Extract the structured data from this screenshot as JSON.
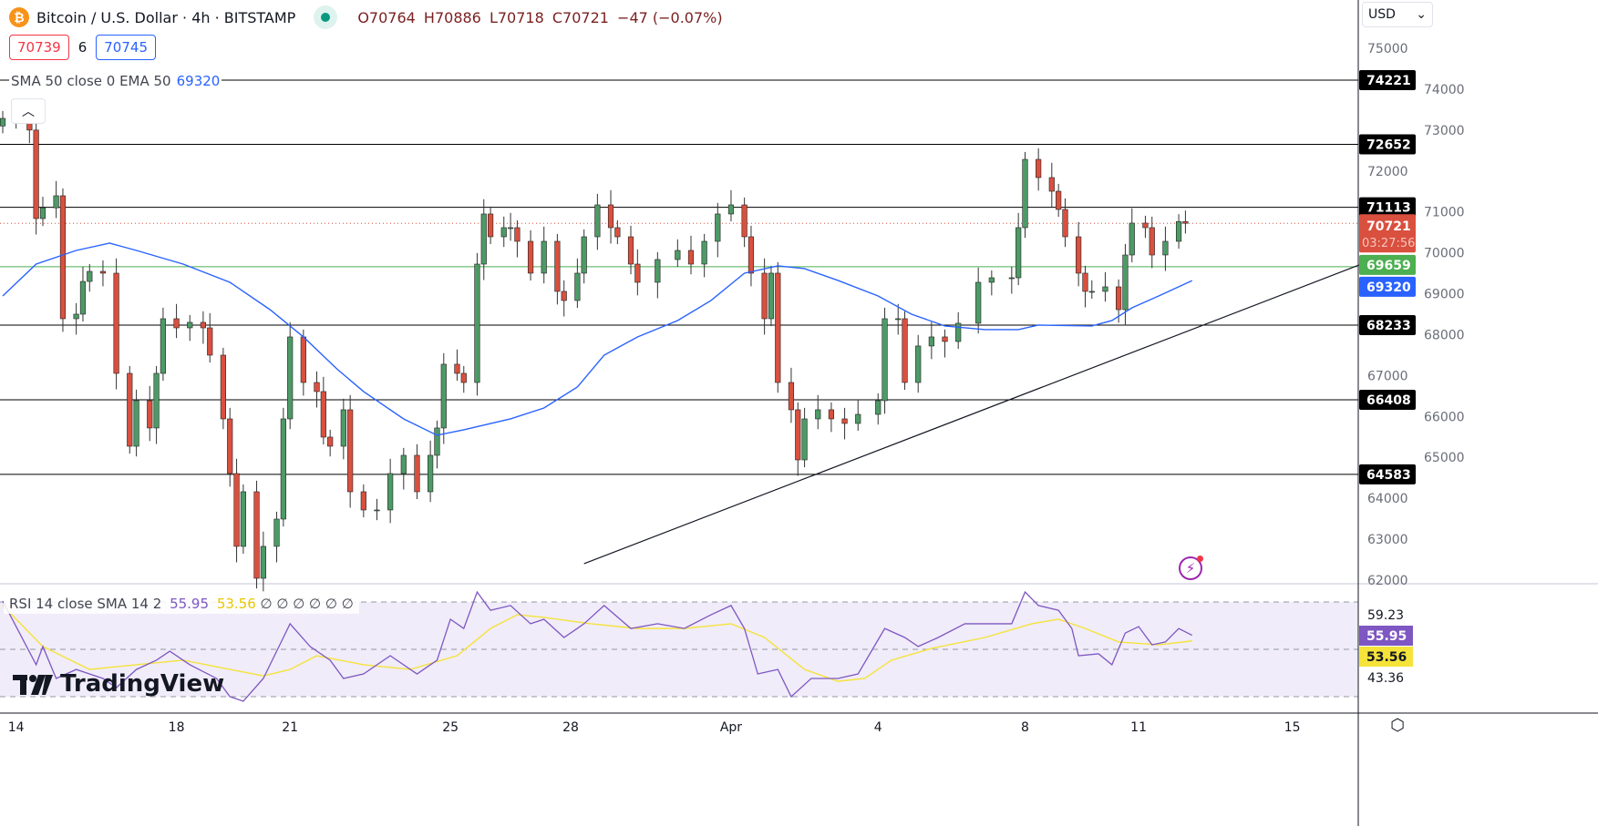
{
  "header": {
    "symbol_title": "Bitcoin / U.S. Dollar · 4h · BITSTAMP",
    "open": "O70764",
    "high": "H70886",
    "low": "L70718",
    "close": "C70721",
    "change": "−47 (−0.07%)",
    "bid": "70739",
    "spread": "6",
    "ask": "70745",
    "coin_glyph": "₿"
  },
  "indicators": {
    "ma_label": "SMA 50 close 0 EMA 50",
    "ma_value": "69320",
    "rsi_label": "RSI 14 close SMA 14 2",
    "rsi_value": "55.95",
    "rsi_sma_value": "53.56",
    "rsi_extra": "∅ ∅ ∅ ∅ ∅ ∅"
  },
  "currency": "USD",
  "logo_text": "TradingView",
  "colors": {
    "up": "#4e9a67",
    "down": "#d9503f",
    "ema": "#2962ff",
    "rsi": "#7e57c2",
    "rsi_sma": "#f5e33a",
    "support_green": "#4caf50",
    "current": "#d9503f"
  },
  "chart_data": {
    "type": "candlestick",
    "title": "Bitcoin / U.S. Dollar · 4h · BITSTAMP",
    "bar_unit": "4h bars from first visible",
    "ylim": [
      61900,
      75400
    ],
    "y_ticks": [
      "75000",
      "74000",
      "73000",
      "72000",
      "71000",
      "70000",
      "69000",
      "68000",
      "67000",
      "66000",
      "65000",
      "64000",
      "63000",
      "62000"
    ],
    "x_ticks": [
      {
        "label": "14",
        "bar": 2
      },
      {
        "label": "18",
        "bar": 26
      },
      {
        "label": "21",
        "bar": 43
      },
      {
        "label": "25",
        "bar": 67
      },
      {
        "label": "28",
        "bar": 85
      },
      {
        "label": "Apr",
        "bar": 109
      },
      {
        "label": "4",
        "bar": 131
      },
      {
        "label": "8",
        "bar": 153
      },
      {
        "label": "11",
        "bar": 170
      },
      {
        "label": "15",
        "bar": 193
      }
    ],
    "candles_bar_close": [
      [
        0,
        73286
      ],
      [
        2,
        73300
      ],
      [
        4,
        73000
      ],
      [
        5,
        70837
      ],
      [
        6,
        71100
      ],
      [
        8,
        71394
      ],
      [
        9,
        68389
      ],
      [
        11,
        68500
      ],
      [
        12,
        69300
      ],
      [
        13,
        69546
      ],
      [
        15,
        69502
      ],
      [
        17,
        67053
      ],
      [
        19,
        65272
      ],
      [
        20,
        66385
      ],
      [
        22,
        65718
      ],
      [
        23,
        67053
      ],
      [
        24,
        68389
      ],
      [
        26,
        68166
      ],
      [
        28,
        68300
      ],
      [
        30,
        68166
      ],
      [
        31,
        67498
      ],
      [
        33,
        65940
      ],
      [
        34,
        64604
      ],
      [
        35,
        62824
      ],
      [
        36,
        64159
      ],
      [
        38,
        62044
      ],
      [
        39,
        62824
      ],
      [
        41,
        63491
      ],
      [
        42,
        65940
      ],
      [
        43,
        67944
      ],
      [
        45,
        66830
      ],
      [
        47,
        66608
      ],
      [
        48,
        65495
      ],
      [
        49,
        65272
      ],
      [
        51,
        66163
      ],
      [
        52,
        64159
      ],
      [
        54,
        63714
      ],
      [
        56,
        63714
      ],
      [
        58,
        64604
      ],
      [
        60,
        65050
      ],
      [
        62,
        64159
      ],
      [
        64,
        65050
      ],
      [
        65,
        65718
      ],
      [
        66,
        67276
      ],
      [
        68,
        67053
      ],
      [
        69,
        66830
      ],
      [
        71,
        69724
      ],
      [
        72,
        70949
      ],
      [
        73,
        70392
      ],
      [
        75,
        70615
      ],
      [
        76,
        70615
      ],
      [
        77,
        70281
      ],
      [
        79,
        69502
      ],
      [
        81,
        70281
      ],
      [
        83,
        69057
      ],
      [
        84,
        68834
      ],
      [
        86,
        69502
      ],
      [
        87,
        70392
      ],
      [
        89,
        71171
      ],
      [
        91,
        70615
      ],
      [
        92,
        70392
      ],
      [
        94,
        69724
      ],
      [
        95,
        69279
      ],
      [
        98,
        69836
      ],
      [
        101,
        70058
      ],
      [
        103,
        69724
      ],
      [
        105,
        70281
      ],
      [
        107,
        70949
      ],
      [
        109,
        71171
      ],
      [
        111,
        70392
      ],
      [
        112,
        69502
      ],
      [
        114,
        68389
      ],
      [
        115,
        69502
      ],
      [
        116,
        66830
      ],
      [
        118,
        66163
      ],
      [
        119,
        64938
      ],
      [
        120,
        65940
      ],
      [
        122,
        66163
      ],
      [
        124,
        65940
      ],
      [
        126,
        65829
      ],
      [
        128,
        66051
      ],
      [
        131,
        66385
      ],
      [
        132,
        68389
      ],
      [
        134,
        68389
      ],
      [
        135,
        66830
      ],
      [
        137,
        67722
      ],
      [
        139,
        67944
      ],
      [
        141,
        67832
      ],
      [
        143,
        68278
      ],
      [
        146,
        69279
      ],
      [
        148,
        69390
      ],
      [
        151,
        69390
      ],
      [
        152,
        70615
      ],
      [
        153,
        72284
      ],
      [
        155,
        71839
      ],
      [
        157,
        71505
      ],
      [
        158,
        71060
      ],
      [
        159,
        70392
      ],
      [
        161,
        69502
      ],
      [
        162,
        69057
      ],
      [
        163,
        69057
      ],
      [
        165,
        69168
      ],
      [
        167,
        68611
      ],
      [
        168,
        69947
      ],
      [
        169,
        70726
      ],
      [
        171,
        70615
      ],
      [
        172,
        69947
      ],
      [
        174,
        70281
      ],
      [
        176,
        70764
      ],
      [
        177,
        70721
      ]
    ],
    "ema50": [
      [
        0,
        68945
      ],
      [
        5,
        69724
      ],
      [
        11,
        70058
      ],
      [
        16,
        70236
      ],
      [
        20,
        70058
      ],
      [
        27,
        69724
      ],
      [
        34,
        69279
      ],
      [
        40,
        68611
      ],
      [
        45,
        67944
      ],
      [
        50,
        67164
      ],
      [
        54,
        66608
      ],
      [
        60,
        65940
      ],
      [
        65,
        65540
      ],
      [
        69,
        65673
      ],
      [
        76,
        65940
      ],
      [
        81,
        66207
      ],
      [
        86,
        66719
      ],
      [
        90,
        67498
      ],
      [
        95,
        67944
      ],
      [
        101,
        68344
      ],
      [
        106,
        68834
      ],
      [
        111,
        69502
      ],
      [
        116,
        69680
      ],
      [
        120,
        69613
      ],
      [
        125,
        69324
      ],
      [
        131,
        68945
      ],
      [
        136,
        68500
      ],
      [
        141,
        68211
      ],
      [
        147,
        68122
      ],
      [
        152,
        68122
      ],
      [
        155,
        68233
      ],
      [
        163,
        68211
      ],
      [
        166,
        68344
      ],
      [
        169,
        68656
      ],
      [
        173,
        68945
      ],
      [
        178,
        69320
      ]
    ],
    "levels": [
      {
        "label": "74221",
        "price": 74221,
        "color": "#000000"
      },
      {
        "label": "72652",
        "price": 72652,
        "color": "#000000"
      },
      {
        "label": "71113",
        "price": 71113,
        "color": "#000000"
      },
      {
        "label": "68233",
        "price": 68233,
        "color": "#000000"
      },
      {
        "label": "66408",
        "price": 66408,
        "color": "#000000"
      },
      {
        "label": "64583",
        "price": 64583,
        "color": "#000000"
      }
    ],
    "support_line": {
      "label": "69659",
      "price": 69659
    },
    "current_price": {
      "label": "70721",
      "countdown": "03:27:56",
      "price": 70721
    },
    "ema_label": "69320",
    "trendline": [
      [
        87,
        62401
      ],
      [
        203,
        69702
      ]
    ],
    "rsi": {
      "ylim": [
        25,
        78
      ],
      "levels": [
        70,
        50,
        30
      ],
      "axis_labels": [
        "59.23",
        "43.36"
      ],
      "values": [
        [
          0,
          70.4
        ],
        [
          5,
          43.5
        ],
        [
          6,
          51.2
        ],
        [
          8,
          37.7
        ],
        [
          11,
          41.5
        ],
        [
          15,
          37.7
        ],
        [
          17,
          33.8
        ],
        [
          20,
          41.5
        ],
        [
          23,
          45.4
        ],
        [
          25,
          49.2
        ],
        [
          28,
          43.5
        ],
        [
          32,
          37.7
        ],
        [
          34,
          30
        ],
        [
          36,
          28.1
        ],
        [
          39,
          37.7
        ],
        [
          42,
          55
        ],
        [
          43,
          60.8
        ],
        [
          46,
          51.2
        ],
        [
          49,
          45.4
        ],
        [
          51,
          37.7
        ],
        [
          54,
          39.6
        ],
        [
          58,
          47.3
        ],
        [
          62,
          39.6
        ],
        [
          65,
          45.4
        ],
        [
          67,
          62.7
        ],
        [
          69,
          58.8
        ],
        [
          71,
          74.2
        ],
        [
          73,
          66.5
        ],
        [
          76,
          68.5
        ],
        [
          79,
          60.8
        ],
        [
          81,
          62.7
        ],
        [
          84,
          55
        ],
        [
          87,
          60.8
        ],
        [
          90,
          68.5
        ],
        [
          94,
          58.8
        ],
        [
          98,
          60.8
        ],
        [
          102,
          58.8
        ],
        [
          106,
          64.6
        ],
        [
          109,
          68.5
        ],
        [
          111,
          58.8
        ],
        [
          113,
          39.6
        ],
        [
          116,
          41.5
        ],
        [
          118,
          30
        ],
        [
          121,
          37.7
        ],
        [
          125,
          37.7
        ],
        [
          128,
          39.6
        ],
        [
          132,
          58.8
        ],
        [
          135,
          55
        ],
        [
          137,
          51.2
        ],
        [
          140,
          55
        ],
        [
          144,
          60.8
        ],
        [
          148,
          60.8
        ],
        [
          151,
          60.8
        ],
        [
          153,
          74.2
        ],
        [
          155,
          68.5
        ],
        [
          158,
          66.5
        ],
        [
          160,
          58.8
        ],
        [
          161,
          47.3
        ],
        [
          164,
          48.1
        ],
        [
          166,
          43.5
        ],
        [
          168,
          56.9
        ],
        [
          170,
          59.6
        ],
        [
          172,
          51.9
        ],
        [
          174,
          53.1
        ],
        [
          176,
          58.8
        ],
        [
          178,
          55.95
        ]
      ],
      "sma": [
        [
          0,
          68.5
        ],
        [
          6,
          51.2
        ],
        [
          13,
          41.5
        ],
        [
          20,
          43.5
        ],
        [
          27,
          45.4
        ],
        [
          34,
          41.5
        ],
        [
          39,
          38.8
        ],
        [
          43,
          41.5
        ],
        [
          47,
          47.3
        ],
        [
          54,
          43.5
        ],
        [
          61,
          41.5
        ],
        [
          68,
          47.3
        ],
        [
          73,
          58.8
        ],
        [
          77,
          64.6
        ],
        [
          81,
          63.5
        ],
        [
          88,
          60.8
        ],
        [
          95,
          58.8
        ],
        [
          102,
          58.8
        ],
        [
          109,
          60.8
        ],
        [
          114,
          55
        ],
        [
          120,
          41.5
        ],
        [
          125,
          36.5
        ],
        [
          129,
          37.7
        ],
        [
          133,
          45.4
        ],
        [
          139,
          50.4
        ],
        [
          147,
          55
        ],
        [
          154,
          60.8
        ],
        [
          158,
          62.7
        ],
        [
          162,
          58.8
        ],
        [
          167,
          53.1
        ],
        [
          173,
          51.9
        ],
        [
          178,
          53.56
        ]
      ]
    }
  }
}
